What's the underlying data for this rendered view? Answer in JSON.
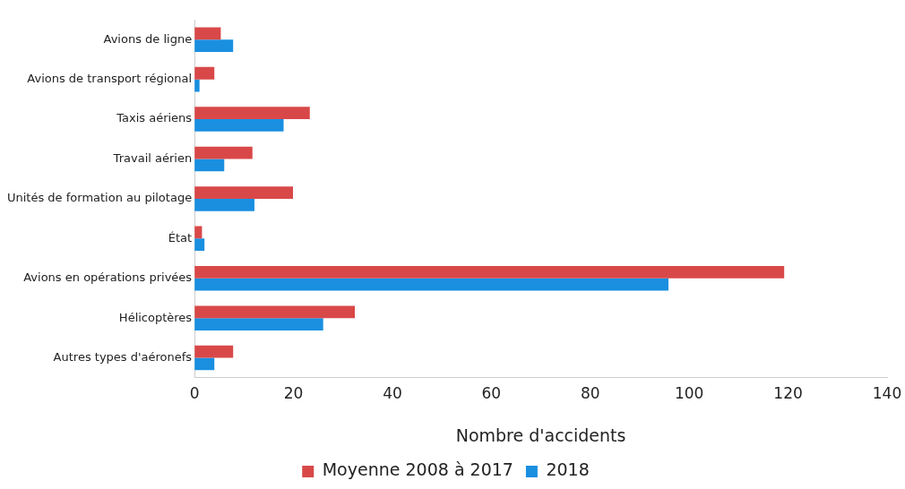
{
  "chart_data": {
    "type": "bar",
    "orientation": "horizontal",
    "xlabel": "Nombre d'accidents",
    "categories": [
      "Avions de ligne",
      "Avions de transport régional",
      "Taxis aériens",
      "Travail aérien",
      "Unités de formation au pilotage",
      "État",
      "Avions en opérations privées",
      "Hélicoptères",
      "Autres types d'aéronefs"
    ],
    "series": [
      {
        "name": "Moyenne 2008 à 2017",
        "color": "#d94848",
        "values": [
          5.3,
          4,
          23.3,
          11.7,
          19.9,
          1.5,
          119.2,
          32.4,
          7.8
        ]
      },
      {
        "name": "2018",
        "color": "#1a8fe0",
        "values": [
          7.8,
          1,
          18,
          6,
          12.1,
          2,
          95.8,
          26,
          4
        ]
      }
    ],
    "xlim": [
      0,
      140
    ],
    "xticks": [
      0,
      20,
      40,
      60,
      80,
      100,
      120,
      140
    ],
    "grid": false,
    "legend": "bottom"
  }
}
